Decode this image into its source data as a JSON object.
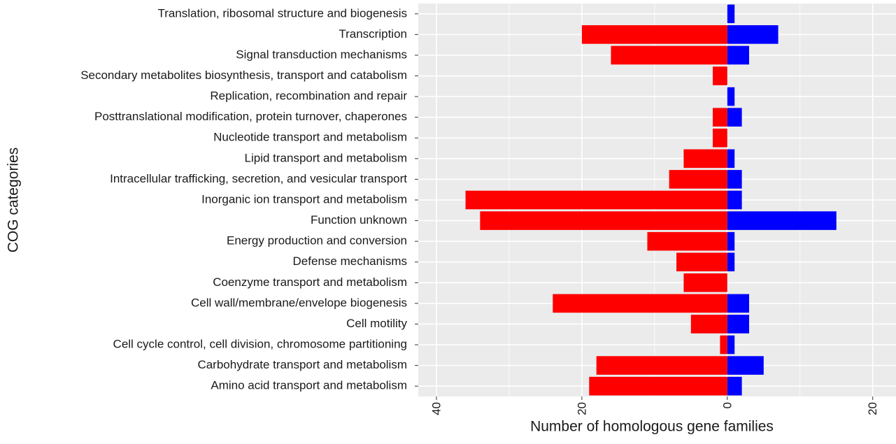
{
  "chart_data": {
    "type": "bar",
    "orientation": "horizontal",
    "xlabel": "Number of homologous gene families",
    "ylabel": "COG categories",
    "categories": [
      "Translation, ribosomal structure and biogenesis",
      "Transcription",
      "Signal transduction mechanisms",
      "Secondary metabolites biosynthesis, transport and catabolism",
      "Replication, recombination and repair",
      "Posttranslational modification, protein turnover, chaperones",
      "Nucleotide transport and metabolism",
      "Lipid transport and metabolism",
      "Intracellular trafficking, secretion, and vesicular transport",
      "Inorganic ion transport and metabolism",
      "Function unknown",
      "Energy production and conversion",
      "Defense mechanisms",
      "Coenzyme transport and metabolism",
      "Cell wall/membrane/envelope biogenesis",
      "Cell motility",
      "Cell cycle control, cell division, chromosome partitioning",
      "Carbohydrate transport and metabolism",
      "Amino acid transport and metabolism"
    ],
    "series": [
      {
        "color": "#ff0000",
        "values": [
          0,
          -20,
          -16,
          -2,
          0,
          -2,
          -2,
          -6,
          -8,
          -36,
          -34,
          -11,
          -7,
          -6,
          -24,
          -5,
          -1,
          -18,
          -19
        ]
      },
      {
        "color": "#0000ff",
        "values": [
          1,
          7,
          3,
          0,
          1,
          2,
          0,
          1,
          2,
          2,
          15,
          1,
          1,
          0,
          3,
          3,
          1,
          5,
          2
        ]
      }
    ],
    "xlim": [
      -42.5,
      23.2
    ],
    "xticks": [
      {
        "value": -40,
        "label": "40"
      },
      {
        "value": -20,
        "label": "20"
      },
      0,
      20
    ],
    "grid": true
  }
}
